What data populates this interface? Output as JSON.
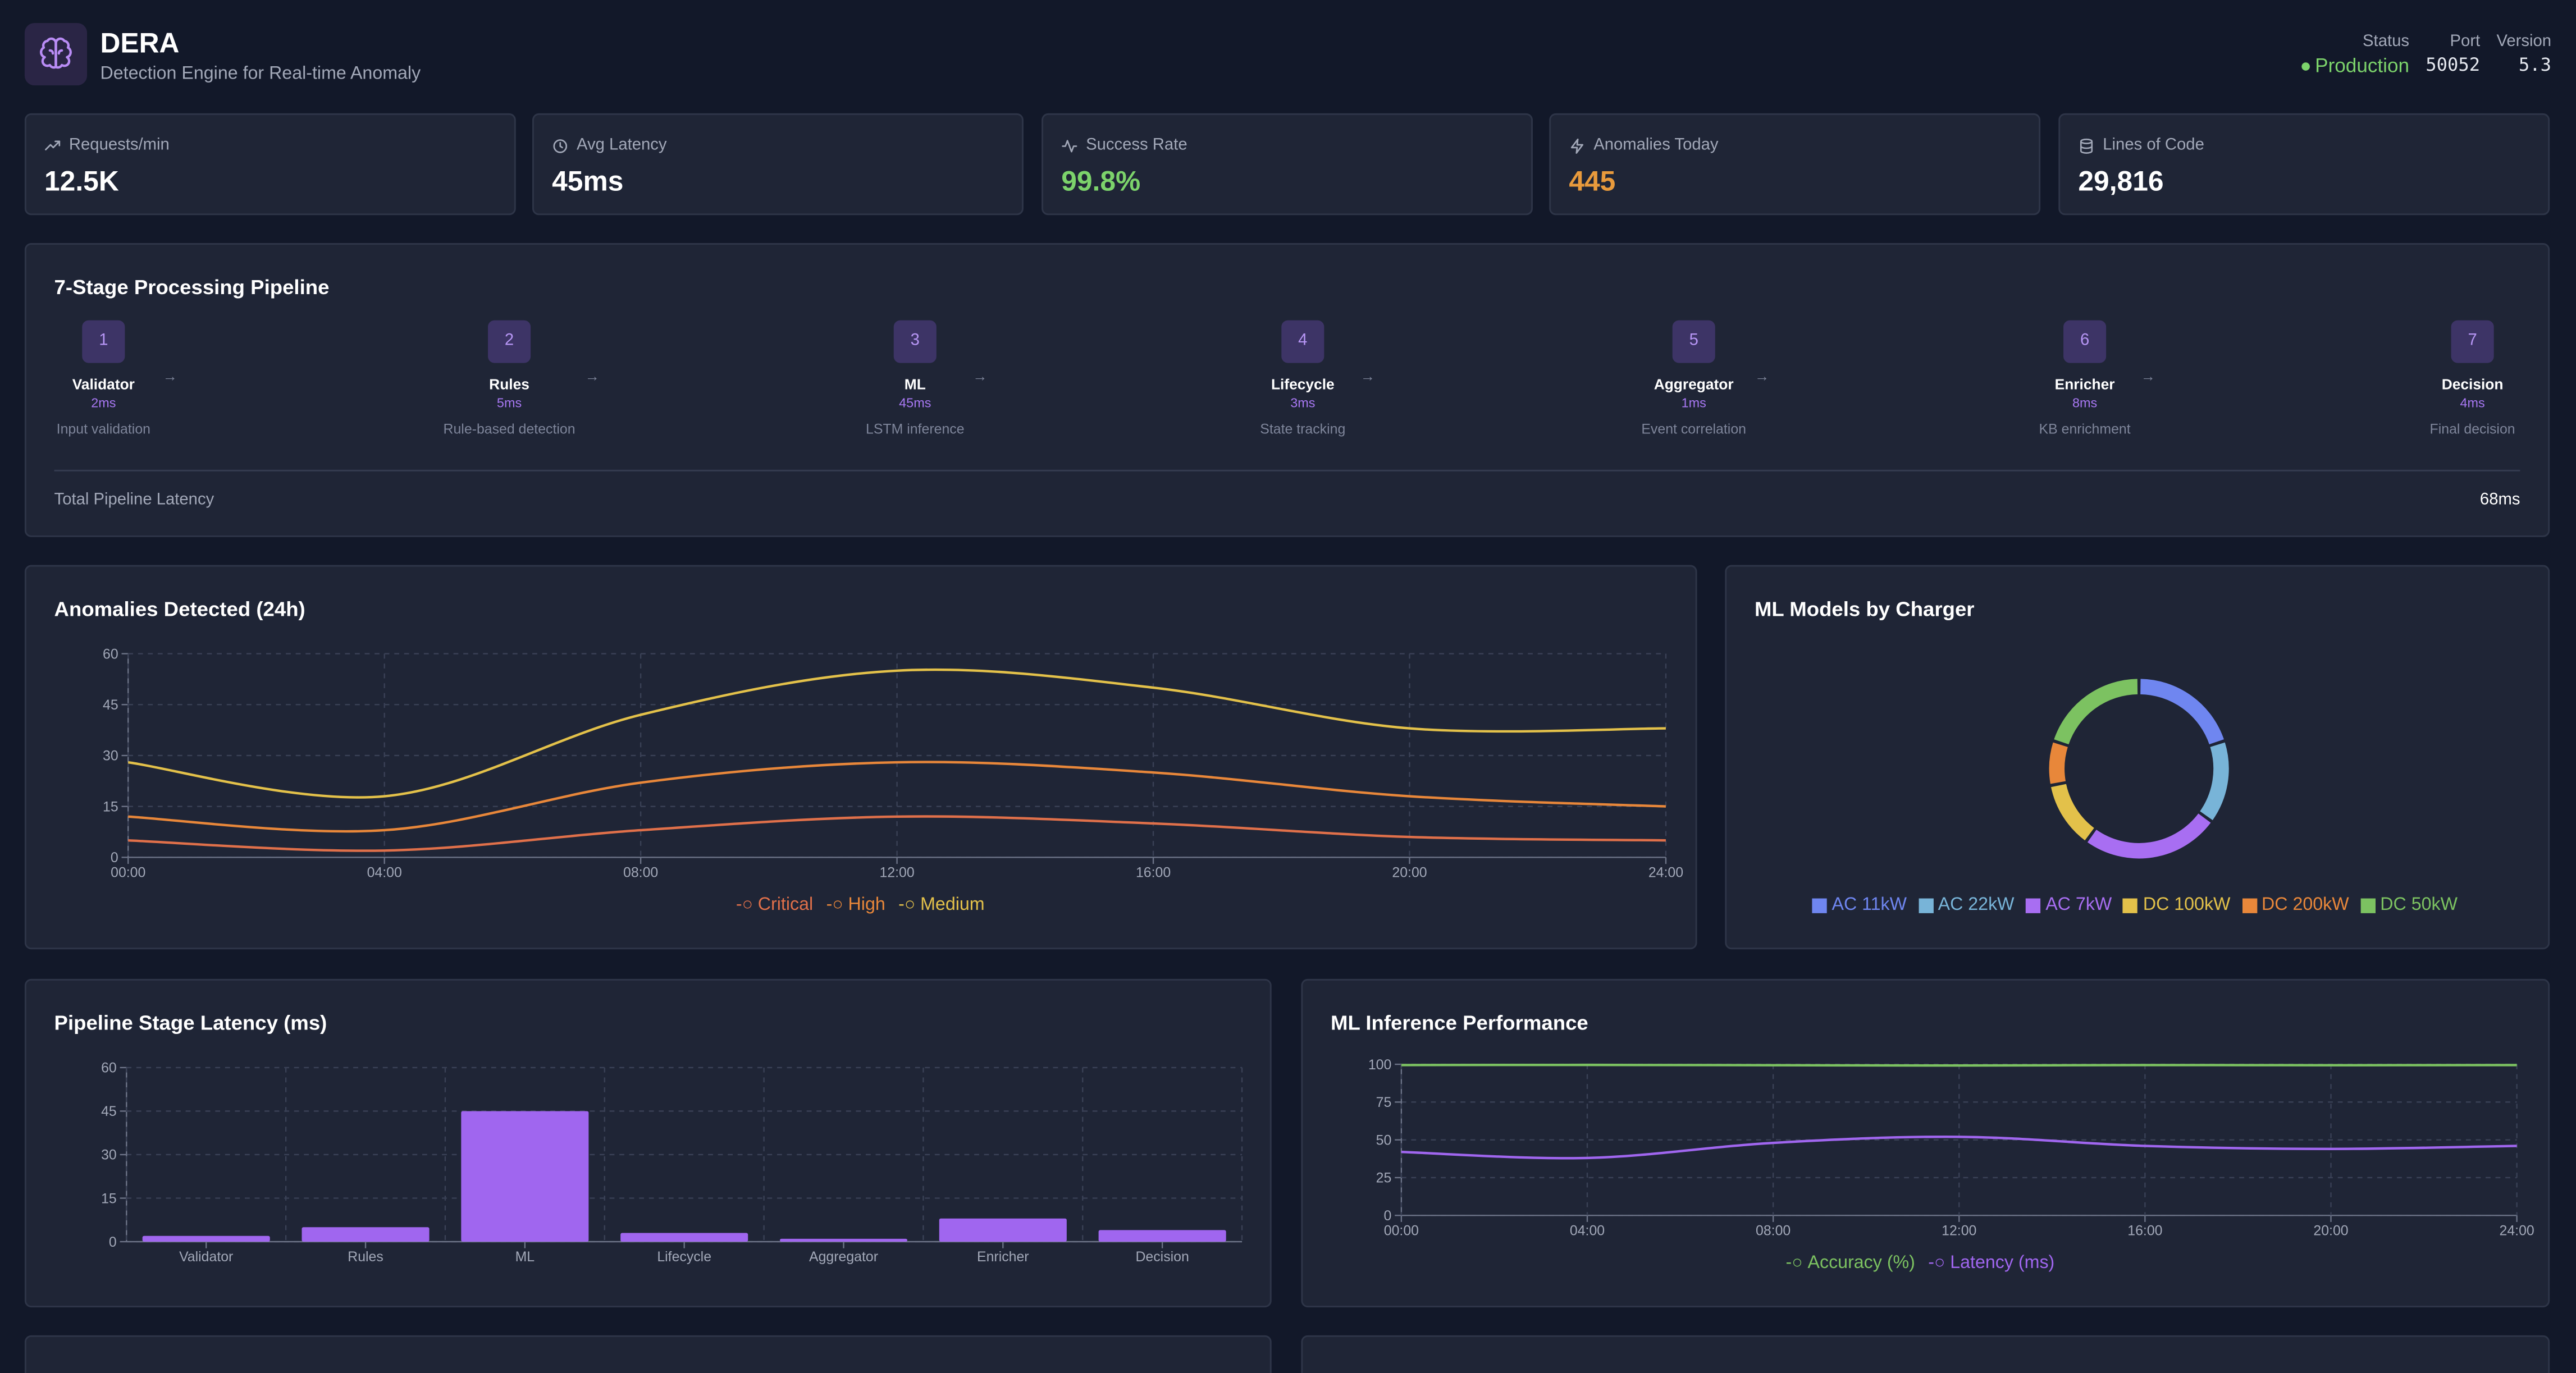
{
  "header": {
    "title": "DERA",
    "subtitle": "Detection Engine for Real-time Anomaly",
    "logo_icon": "brain-icon",
    "status_label": "Status",
    "status_value": "Production",
    "port_label": "Port",
    "port_value": "50052",
    "version_label": "Version",
    "version_value": "5.3"
  },
  "stats": [
    {
      "label": "Requests/min",
      "value": "12.5K",
      "icon": "trending-up-icon",
      "color": "#ffffff"
    },
    {
      "label": "Avg Latency",
      "value": "45ms",
      "icon": "clock-icon",
      "color": "#ffffff"
    },
    {
      "label": "Success Rate",
      "value": "99.8%",
      "icon": "activity-icon",
      "color": "#7cd36b"
    },
    {
      "label": "Anomalies Today",
      "value": "445",
      "icon": "zap-icon",
      "color": "#e89a3c"
    },
    {
      "label": "Lines of Code",
      "value": "29,816",
      "icon": "database-icon",
      "color": "#ffffff"
    }
  ],
  "pipeline": {
    "title": "7-Stage Processing Pipeline",
    "stages": [
      {
        "num": "1",
        "name": "Validator",
        "time": "2ms",
        "desc": "Input validation"
      },
      {
        "num": "2",
        "name": "Rules",
        "time": "5ms",
        "desc": "Rule-based detection"
      },
      {
        "num": "3",
        "name": "ML",
        "time": "45ms",
        "desc": "LSTM inference"
      },
      {
        "num": "4",
        "name": "Lifecycle",
        "time": "3ms",
        "desc": "State tracking"
      },
      {
        "num": "5",
        "name": "Aggregator",
        "time": "1ms",
        "desc": "Event correlation"
      },
      {
        "num": "6",
        "name": "Enricher",
        "time": "8ms",
        "desc": "KB enrichment"
      },
      {
        "num": "7",
        "name": "Decision",
        "time": "4ms",
        "desc": "Final decision"
      }
    ],
    "total_label": "Total Pipeline Latency",
    "total_value": "68ms"
  },
  "chart_data": [
    {
      "type": "line",
      "title": "Anomalies Detected (24h)",
      "x": [
        "00:00",
        "04:00",
        "08:00",
        "12:00",
        "16:00",
        "20:00",
        "24:00"
      ],
      "ylim": [
        0,
        60
      ],
      "yticks": [
        0,
        15,
        30,
        45,
        60
      ],
      "grid": true,
      "legend": "bottom",
      "series": [
        {
          "name": "Critical",
          "color": "#e0704a",
          "values": [
            5,
            2,
            8,
            12,
            10,
            6,
            5
          ]
        },
        {
          "name": "High",
          "color": "#e8873a",
          "values": [
            12,
            8,
            22,
            28,
            25,
            18,
            15
          ]
        },
        {
          "name": "Medium",
          "color": "#e3c14a",
          "values": [
            28,
            18,
            42,
            55,
            50,
            38,
            38
          ]
        }
      ]
    },
    {
      "type": "pie",
      "title": "ML Models by Charger",
      "legend": "bottom",
      "slices": [
        {
          "name": "AC 11kW",
          "value": 20,
          "color": "#6f86f0"
        },
        {
          "name": "AC 22kW",
          "value": 15,
          "color": "#78b4d8"
        },
        {
          "name": "AC 7kW",
          "value": 25,
          "color": "#a86ef2"
        },
        {
          "name": "DC 100kW",
          "value": 12,
          "color": "#e3c14a"
        },
        {
          "name": "DC 200kW",
          "value": 8,
          "color": "#e8873a"
        },
        {
          "name": "DC 50kW",
          "value": 20,
          "color": "#7cc261"
        }
      ]
    },
    {
      "type": "bar",
      "title": "Pipeline Stage Latency (ms)",
      "categories": [
        "Validator",
        "Rules",
        "ML",
        "Lifecycle",
        "Aggregator",
        "Enricher",
        "Decision"
      ],
      "values": [
        2,
        5,
        45,
        3,
        1,
        8,
        4
      ],
      "ylim": [
        0,
        60
      ],
      "yticks": [
        0,
        15,
        30,
        45,
        60
      ],
      "grid": true,
      "color": "#a066ef"
    },
    {
      "type": "line",
      "title": "ML Inference Performance",
      "x": [
        "00:00",
        "04:00",
        "08:00",
        "12:00",
        "16:00",
        "20:00",
        "24:00"
      ],
      "ylim": [
        0,
        100
      ],
      "yticks": [
        0,
        25,
        50,
        75,
        100
      ],
      "grid": true,
      "legend": "bottom",
      "series": [
        {
          "name": "Accuracy (%)",
          "color": "#7cc261",
          "values": [
            99.5,
            99.6,
            99.4,
            99.2,
            99.5,
            99.4,
            99.5
          ]
        },
        {
          "name": "Latency (ms)",
          "color": "#a066ef",
          "values": [
            42,
            38,
            48,
            52,
            46,
            44,
            46
          ]
        }
      ]
    }
  ]
}
